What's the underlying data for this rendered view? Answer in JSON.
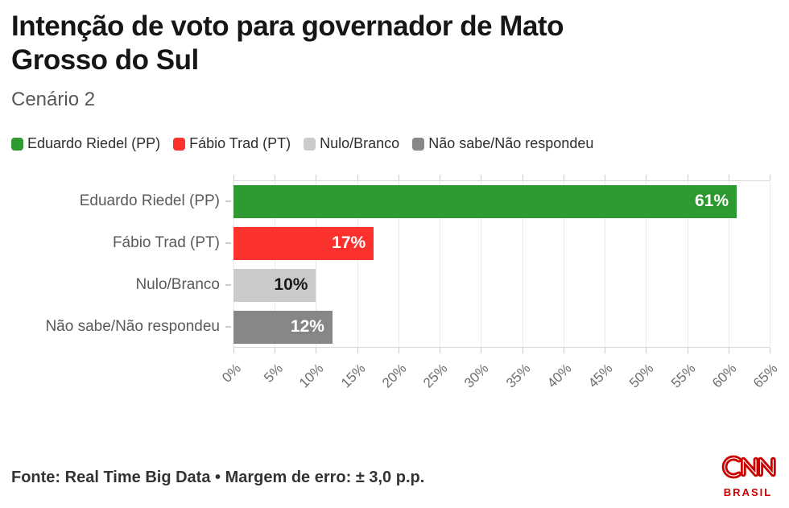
{
  "header": {
    "title_line1": "Intenção de voto para governador de Mato",
    "title_line2": "Grosso do Sul",
    "subtitle": "Cenário 2"
  },
  "legend": [
    {
      "label": "Eduardo Riedel (PP)",
      "color": "#2f9932"
    },
    {
      "label": "Fábio Trad (PT)",
      "color": "#fc322f"
    },
    {
      "label": "Nulo/Branco",
      "color": "#cbcbcb"
    },
    {
      "label": "Não sabe/Não respondeu",
      "color": "#878787"
    }
  ],
  "chart_data": {
    "type": "bar",
    "orientation": "horizontal",
    "title": "Intenção de voto para governador de Mato Grosso do Sul",
    "subtitle": "Cenário 2",
    "categories": [
      "Eduardo Riedel (PP)",
      "Fábio Trad (PT)",
      "Nulo/Branco",
      "Não sabe/Não respondeu"
    ],
    "values": [
      61,
      17,
      10,
      12
    ],
    "value_labels": [
      "61%",
      "17%",
      "10%",
      "12%"
    ],
    "bar_colors": [
      "#2f9932",
      "#fc322f",
      "#cbcbcb",
      "#878787"
    ],
    "value_label_colors": [
      "#ffffff",
      "#ffffff",
      "#1a1a1a",
      "#ffffff"
    ],
    "x_ticks": [
      "0%",
      "5%",
      "10%",
      "15%",
      "20%",
      "25%",
      "30%",
      "35%",
      "40%",
      "45%",
      "50%",
      "55%",
      "60%",
      "65%"
    ],
    "xlim": [
      0,
      65
    ],
    "grid": true,
    "legend_position": "top",
    "xlabel": "",
    "ylabel": ""
  },
  "footer": {
    "source": "Fonte: Real Time Big Data • Margem de erro: ± 3,0 p.p.",
    "logo_text": "CNN",
    "logo_subtext": "BRASIL",
    "logo_color": "#cc0000"
  }
}
